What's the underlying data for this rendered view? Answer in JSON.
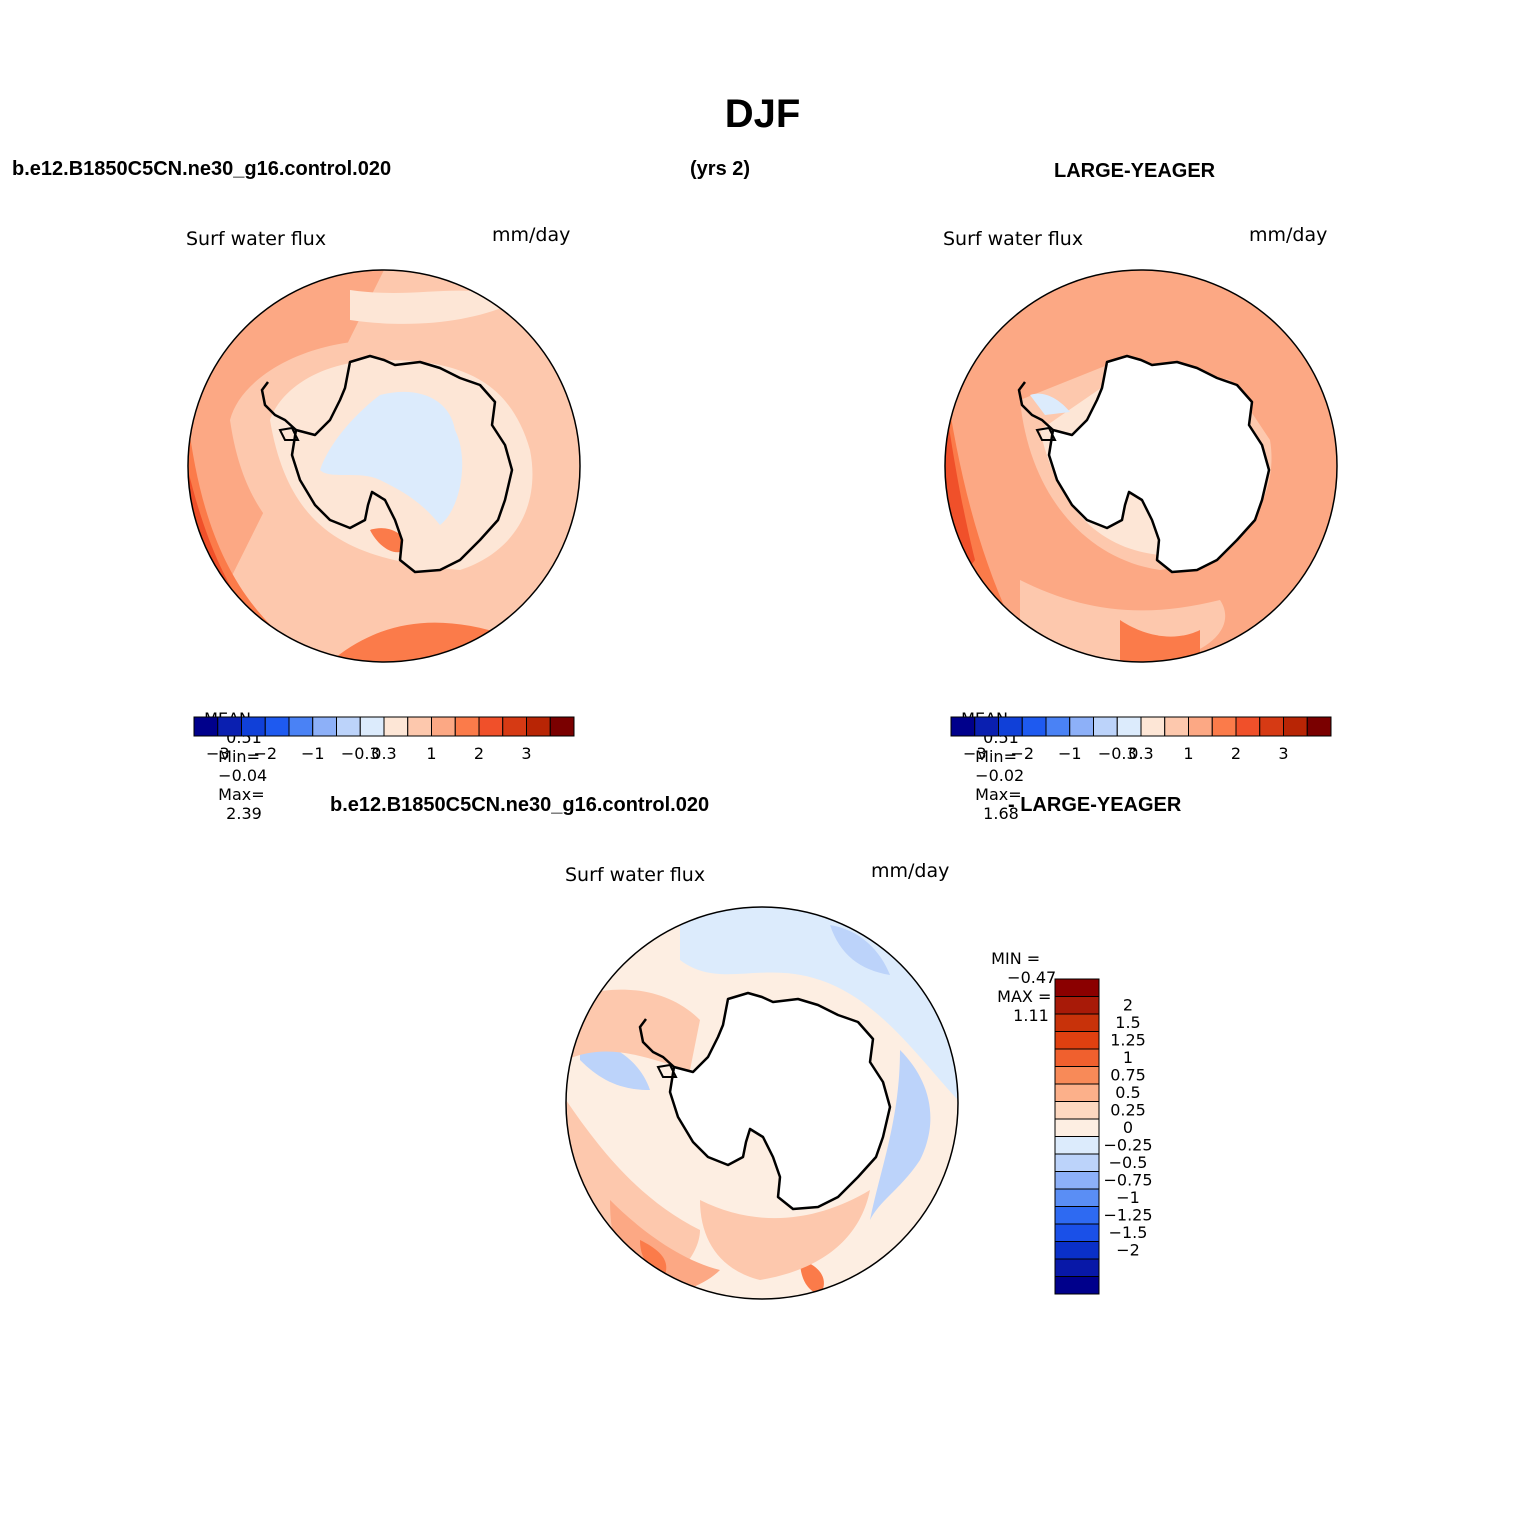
{
  "page": {
    "title": "DJF",
    "case_name": "b.e12.B1850C5CN.ne30_g16.control.020",
    "years": "(yrs 2)",
    "obs_name": "LARGE-YEAGER",
    "diff_case_name": "b.e12.B1850C5CN.ne30_g16.control.020",
    "diff_obs_name": "- LARGE-YEAGER"
  },
  "panels": {
    "model": {
      "var_label": "Surf water flux",
      "units": "mm/day",
      "stats": {
        "mean_label": "MEAN=",
        "mean": "0.51",
        "min_label": "Min=",
        "min": "−0.04",
        "max_label": "Max=",
        "max": "2.39"
      }
    },
    "obs": {
      "var_label": "Surf water flux",
      "units": "mm/day",
      "stats": {
        "mean_label": "MEAN=",
        "mean": "0.51",
        "min_label": "Min=",
        "min": "−0.02",
        "max_label": "Max=",
        "max": "1.68"
      }
    },
    "diff": {
      "var_label": "Surf water flux",
      "units": "mm/day",
      "stats": {
        "min_label": "MIN =",
        "min": "−0.47",
        "max_label": "MAX =",
        "max": "1.11"
      }
    }
  },
  "colorbar_main": {
    "colors": [
      "#00008b",
      "#0a1fb0",
      "#1040d8",
      "#1e5af0",
      "#4a82f5",
      "#8db0f8",
      "#bcd3fa",
      "#dcebfc",
      "#fde6d6",
      "#fdc8ad",
      "#fca884",
      "#fb7b4a",
      "#f0502a",
      "#d63a14",
      "#b82505",
      "#7a0000"
    ],
    "labels": [
      "−3",
      "−2",
      "−1",
      "−0.3",
      "0.3",
      "1",
      "2",
      "3"
    ]
  },
  "colorbar_diff": {
    "colors": [
      "#8b0000",
      "#a81a08",
      "#c8320a",
      "#e04010",
      "#f0602e",
      "#f88a58",
      "#fcb08a",
      "#fdd8c0",
      "#fdeee2",
      "#dcebfc",
      "#bcd3fa",
      "#8db0f8",
      "#5a8ef5",
      "#2e6af2",
      "#1a50e8",
      "#0a30c8",
      "#0818a8",
      "#00008b"
    ],
    "labels": [
      "2",
      "1.5",
      "1.25",
      "1",
      "0.75",
      "0.5",
      "0.25",
      "0",
      "−0.25",
      "−0.5",
      "−0.75",
      "−1",
      "−1.25",
      "−1.5",
      "−2"
    ]
  }
}
